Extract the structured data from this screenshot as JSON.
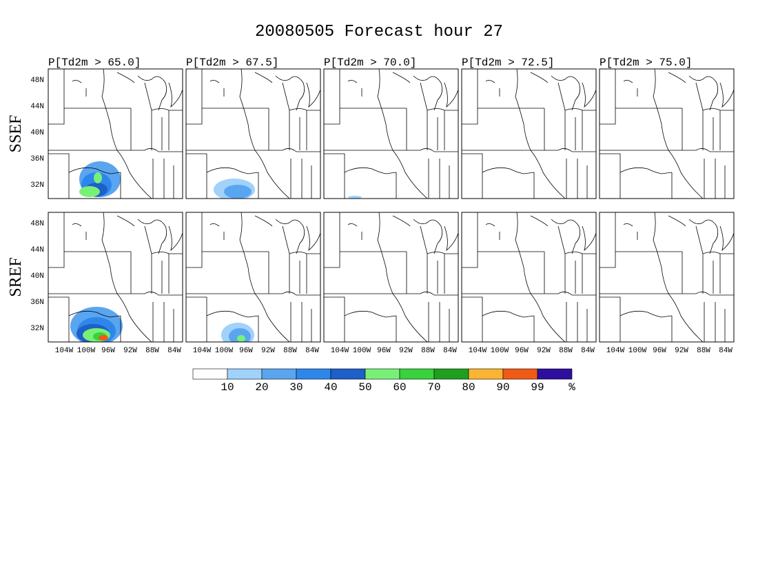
{
  "title": "20080505 Forecast hour 27",
  "columns": [
    "P[Td2m > 65.0]",
    "P[Td2m > 67.5]",
    "P[Td2m > 70.0]",
    "P[Td2m > 72.5]",
    "P[Td2m > 75.0]"
  ],
  "rows": [
    "SSEF",
    "SREF"
  ],
  "lat_labels": [
    "48N",
    "44N",
    "40N",
    "36N",
    "32N"
  ],
  "lon_labels": [
    "104W",
    "100W",
    "96W",
    "92W",
    "88W",
    "84W"
  ],
  "colorbar": {
    "labels": [
      "10",
      "20",
      "30",
      "40",
      "50",
      "60",
      "70",
      "80",
      "90",
      "99",
      "%"
    ],
    "colors": [
      "#ffffff",
      "#a0d2fa",
      "#5aa5f0",
      "#2d87eb",
      "#1e5fc8",
      "#78f078",
      "#37d23c",
      "#1ea01e",
      "#fab432",
      "#f05a14",
      "#2d0fa0"
    ]
  }
}
